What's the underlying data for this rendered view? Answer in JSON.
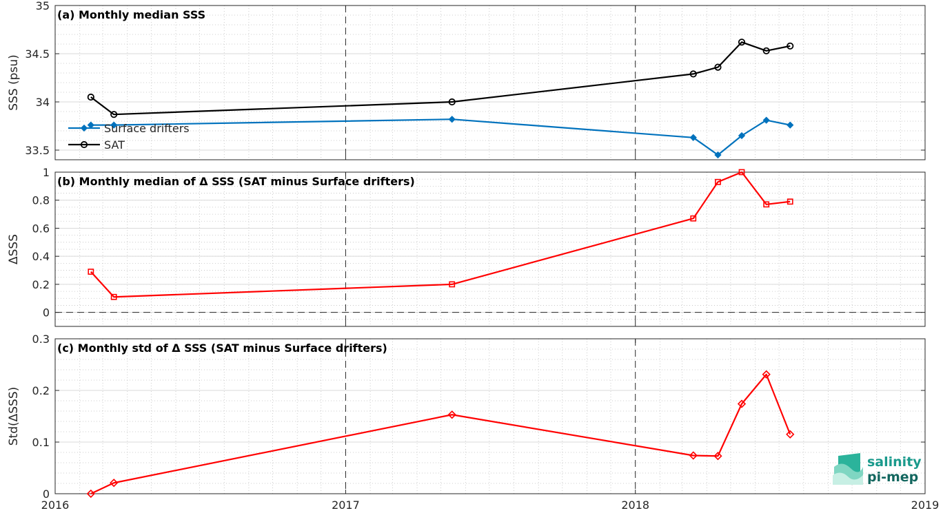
{
  "chart_data": [
    {
      "type": "line",
      "title": "(a) Monthly median SSS",
      "ylabel": "SSS (psu)",
      "ylim": [
        33.4,
        35
      ],
      "yticks": [
        "33.5",
        "34",
        "34.5",
        "35"
      ],
      "xlim": [
        "2016-01-01",
        "2019-01-01"
      ],
      "legend_position": "bottom-left",
      "series": [
        {
          "name": "Surface drifters",
          "color": "#0072bd",
          "marker": "diamond",
          "x": [
            "2016-02-15",
            "2016-03-15",
            "2017-05-15",
            "2018-03-15",
            "2018-04-15",
            "2018-05-15",
            "2018-06-15",
            "2018-07-15"
          ],
          "y": [
            33.76,
            33.76,
            33.82,
            33.63,
            33.45,
            33.65,
            33.81,
            33.76
          ]
        },
        {
          "name": "SAT",
          "color": "#000000",
          "marker": "circle",
          "x": [
            "2016-02-15",
            "2016-03-15",
            "2017-05-15",
            "2018-03-15",
            "2018-04-15",
            "2018-05-15",
            "2018-06-15",
            "2018-07-15"
          ],
          "y": [
            34.05,
            33.87,
            34.0,
            34.29,
            34.36,
            34.62,
            34.53,
            34.58
          ]
        }
      ]
    },
    {
      "type": "line",
      "title": "(b) Monthly median of Δ SSS (SAT minus Surface drifters)",
      "ylabel": "ΔSSS",
      "ylim": [
        -0.1,
        1
      ],
      "yticks": [
        "0",
        "0.2",
        "0.4",
        "0.6",
        "0.8",
        "1"
      ],
      "xlim": [
        "2016-01-01",
        "2019-01-01"
      ],
      "reference_line": 0,
      "series": [
        {
          "color": "#ff0000",
          "marker": "square",
          "x": [
            "2016-02-15",
            "2016-03-15",
            "2017-05-15",
            "2018-03-15",
            "2018-04-15",
            "2018-05-15",
            "2018-06-15",
            "2018-07-15"
          ],
          "y": [
            0.29,
            0.11,
            0.2,
            0.67,
            0.93,
            1.0,
            0.77,
            0.79
          ]
        }
      ]
    },
    {
      "type": "line",
      "title": "(c) Monthly std of Δ SSS (SAT minus Surface drifters)",
      "ylabel": "Std(ΔSSS)",
      "ylim": [
        0,
        0.3
      ],
      "yticks": [
        "0",
        "0.1",
        "0.2",
        "0.3"
      ],
      "xlim": [
        "2016-01-01",
        "2019-01-01"
      ],
      "xticks": [
        "2016",
        "2017",
        "2018",
        "2019"
      ],
      "series": [
        {
          "color": "#ff0000",
          "marker": "diamond",
          "x": [
            "2016-02-15",
            "2016-03-15",
            "2017-05-15",
            "2018-03-15",
            "2018-04-15",
            "2018-05-15",
            "2018-06-15",
            "2018-07-15"
          ],
          "y": [
            0.0,
            0.021,
            0.153,
            0.074,
            0.073,
            0.174,
            0.231,
            0.115
          ]
        }
      ]
    }
  ],
  "logo": {
    "line1": "salinity",
    "line2": "pi-mep",
    "color": "#1a9a8c"
  }
}
